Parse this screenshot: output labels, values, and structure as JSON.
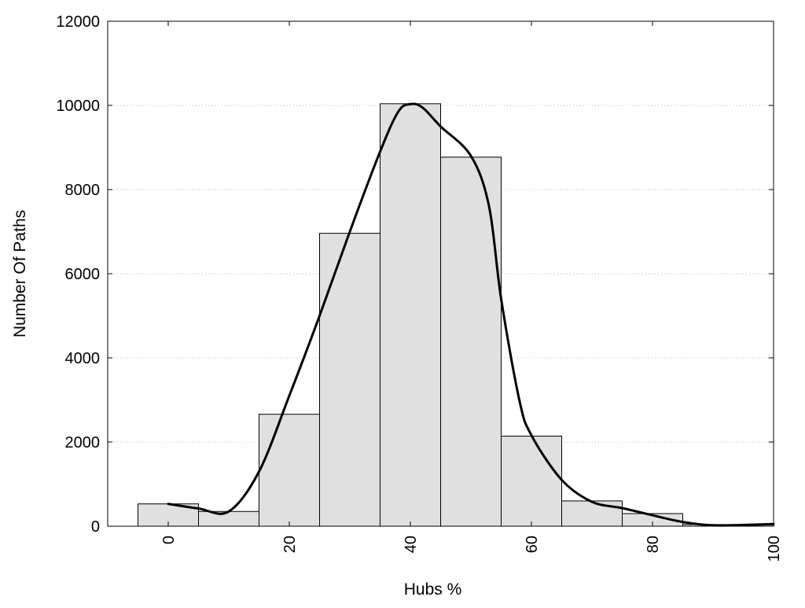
{
  "chart_data": {
    "type": "bar",
    "title": "",
    "xlabel": "Hubs %",
    "ylabel": "Number Of Paths",
    "xlim": [
      -10,
      100
    ],
    "ylim": [
      0,
      12000
    ],
    "x_ticks": [
      0,
      20,
      40,
      60,
      80,
      100
    ],
    "y_ticks": [
      0,
      2000,
      4000,
      6000,
      8000,
      10000,
      12000
    ],
    "grid": "horizontal dotted",
    "legend": "none",
    "bars": [
      {
        "x_start": -5,
        "x_end": 5,
        "value": 530
      },
      {
        "x_start": 5,
        "x_end": 15,
        "value": 350
      },
      {
        "x_start": 15,
        "x_end": 25,
        "value": 2660
      },
      {
        "x_start": 25,
        "x_end": 35,
        "value": 6960
      },
      {
        "x_start": 35,
        "x_end": 45,
        "value": 10040
      },
      {
        "x_start": 45,
        "x_end": 55,
        "value": 8770
      },
      {
        "x_start": 55,
        "x_end": 65,
        "value": 2140
      },
      {
        "x_start": 65,
        "x_end": 75,
        "value": 600
      },
      {
        "x_start": 75,
        "x_end": 85,
        "value": 300
      },
      {
        "x_start": 85,
        "x_end": 95,
        "value": 40
      },
      {
        "x_start": 95,
        "x_end": 100,
        "value": 30
      }
    ],
    "series": [
      {
        "type": "line",
        "x": [
          0,
          5,
          10,
          15,
          20,
          25,
          30,
          35,
          38,
          40,
          42,
          45,
          50,
          53,
          55,
          58,
          60,
          65,
          70,
          75,
          80,
          85,
          90,
          95,
          100
        ],
        "values": [
          530,
          420,
          350,
          1300,
          3100,
          5000,
          7000,
          8900,
          9850,
          10030,
          9950,
          9500,
          8800,
          7600,
          5400,
          3000,
          2160,
          1100,
          580,
          430,
          260,
          100,
          20,
          30,
          50
        ]
      }
    ],
    "colors": {
      "bar_fill": "#e0e0e0",
      "bar_stroke": "#000000",
      "line": "#000000",
      "grid": "#bbbbbb"
    }
  }
}
